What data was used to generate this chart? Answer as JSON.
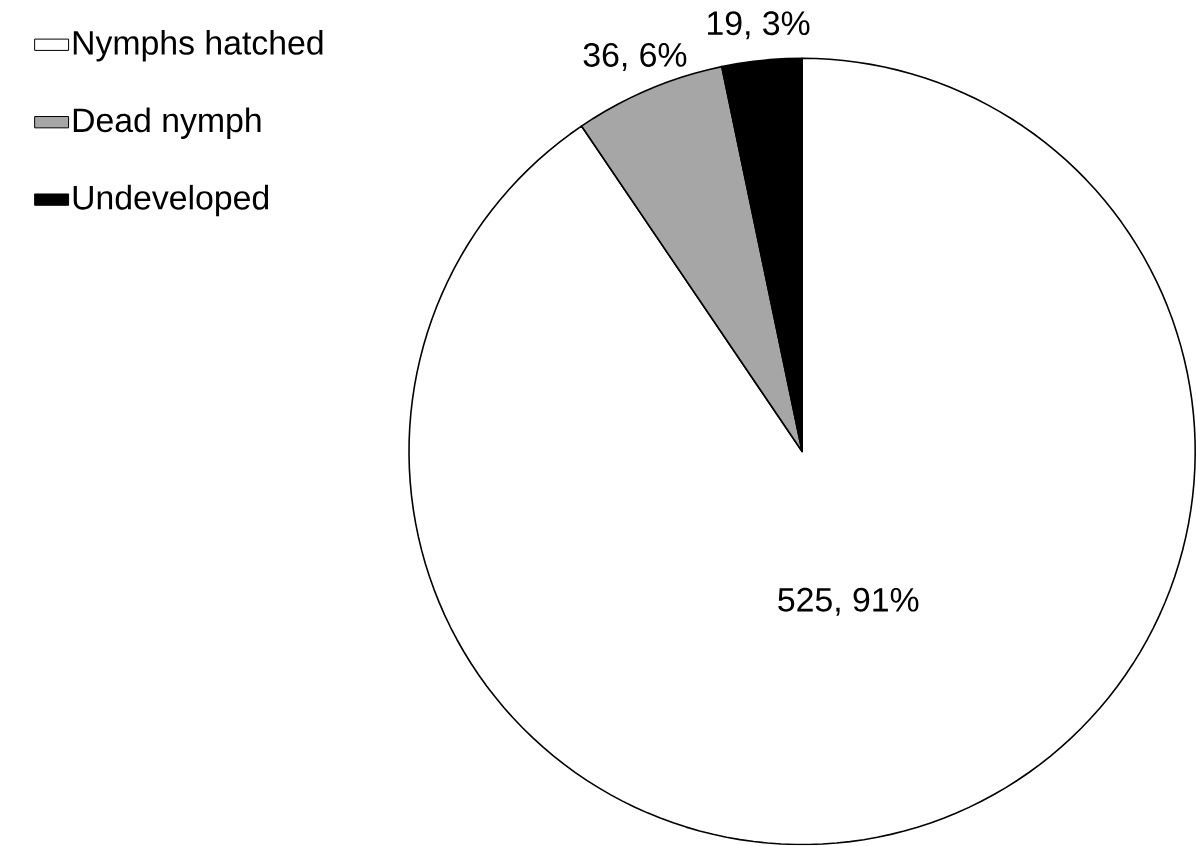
{
  "chart_data": {
    "type": "pie",
    "categories": [
      "Nymphs hatched",
      "Dead nymph",
      "Undeveloped"
    ],
    "values": [
      525,
      36,
      19
    ],
    "colors": [
      "#ffffff",
      "#a6a6a6",
      "#000000"
    ],
    "value_labels": [
      "525, 91%",
      "36, 6%",
      "19, 3%"
    ],
    "legend": "top left"
  }
}
